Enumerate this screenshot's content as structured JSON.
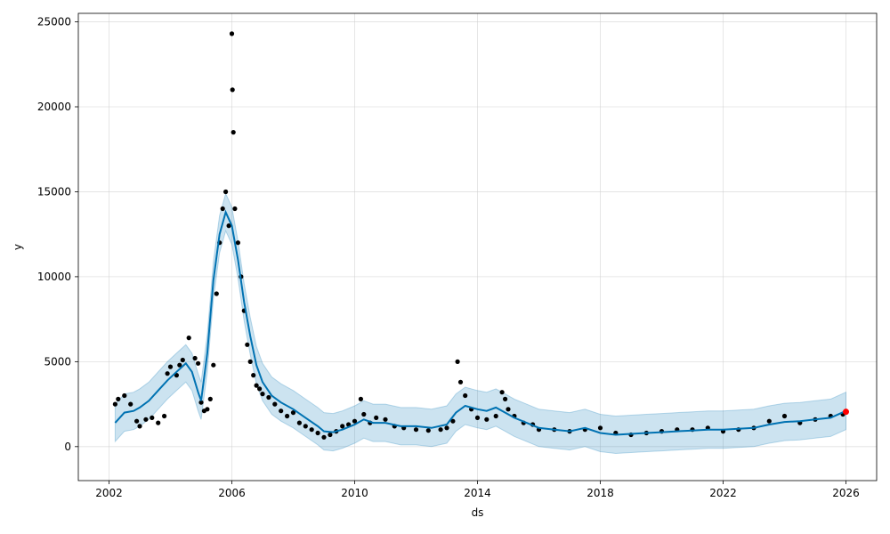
{
  "chart_data": {
    "type": "line",
    "title": "",
    "xlabel": "ds",
    "ylabel": "y",
    "xlim": [
      2001.0,
      2027.0
    ],
    "ylim": [
      -2000,
      25500
    ],
    "x_ticks": [
      {
        "value": 2002,
        "label": "2002"
      },
      {
        "value": 2006,
        "label": "2006"
      },
      {
        "value": 2010,
        "label": "2010"
      },
      {
        "value": 2014,
        "label": "2014"
      },
      {
        "value": 2018,
        "label": "2018"
      },
      {
        "value": 2022,
        "label": "2022"
      },
      {
        "value": 2026,
        "label": "2026"
      }
    ],
    "y_ticks": [
      {
        "value": 0,
        "label": "0"
      },
      {
        "value": 5000,
        "label": "5000"
      },
      {
        "value": 10000,
        "label": "10000"
      },
      {
        "value": 15000,
        "label": "15000"
      },
      {
        "value": 20000,
        "label": "20000"
      },
      {
        "value": 25000,
        "label": "25000"
      }
    ],
    "grid": true,
    "colors": {
      "observed": "#000000",
      "forecast": "#0072b2",
      "interval": "#0072b2",
      "last_point": "#ff0000"
    },
    "observed": {
      "x": [
        2002.2,
        2002.3,
        2002.5,
        2002.7,
        2002.9,
        2003.0,
        2003.2,
        2003.4,
        2003.6,
        2003.8,
        2003.9,
        2004.0,
        2004.2,
        2004.3,
        2004.4,
        2004.6,
        2004.8,
        2004.9,
        2005.0,
        2005.1,
        2005.2,
        2005.3,
        2005.4,
        2005.5,
        2005.6,
        2005.7,
        2005.8,
        2005.9,
        2006.0,
        2006.02,
        2006.05,
        2006.1,
        2006.2,
        2006.3,
        2006.4,
        2006.5,
        2006.6,
        2006.7,
        2006.8,
        2006.9,
        2007.0,
        2007.2,
        2007.4,
        2007.6,
        2007.8,
        2008.0,
        2008.2,
        2008.4,
        2008.6,
        2008.8,
        2009.0,
        2009.2,
        2009.4,
        2009.6,
        2009.8,
        2010.0,
        2010.2,
        2010.3,
        2010.5,
        2010.7,
        2011.0,
        2011.3,
        2011.6,
        2012.0,
        2012.4,
        2012.8,
        2013.0,
        2013.2,
        2013.35,
        2013.45,
        2013.6,
        2013.8,
        2014.0,
        2014.3,
        2014.6,
        2014.8,
        2014.9,
        2015.0,
        2015.2,
        2015.5,
        2015.8,
        2016.0,
        2016.5,
        2017.0,
        2017.5,
        2018.0,
        2018.5,
        2019.0,
        2019.5,
        2020.0,
        2020.5,
        2021.0,
        2021.5,
        2022.0,
        2022.5,
        2023.0,
        2023.5,
        2024.0,
        2024.5,
        2025.0,
        2025.5,
        2025.9
      ],
      "y": [
        2500,
        2800,
        3000,
        2500,
        1500,
        1200,
        1600,
        1700,
        1400,
        1800,
        4300,
        4700,
        4200,
        4800,
        5100,
        6400,
        5200,
        4900,
        2600,
        2100,
        2200,
        2800,
        4800,
        9000,
        12000,
        14000,
        15000,
        13000,
        24300,
        21000,
        18500,
        14000,
        12000,
        10000,
        8000,
        6000,
        5000,
        4200,
        3600,
        3400,
        3100,
        2900,
        2500,
        2100,
        1800,
        2000,
        1400,
        1200,
        1000,
        800,
        550,
        700,
        900,
        1200,
        1300,
        1500,
        2800,
        1900,
        1400,
        1700,
        1600,
        1200,
        1100,
        1000,
        950,
        1000,
        1100,
        1500,
        5000,
        3800,
        3000,
        2200,
        1700,
        1600,
        1800,
        3200,
        2800,
        2200,
        1800,
        1400,
        1300,
        1000,
        1000,
        900,
        1000,
        1100,
        800,
        700,
        800,
        900,
        1000,
        1000,
        1100,
        900,
        1000,
        1100,
        1500,
        1800,
        1400,
        1600,
        1800,
        1900
      ]
    },
    "forecast": {
      "x": [
        2002.2,
        2002.5,
        2002.8,
        2003.0,
        2003.3,
        2003.6,
        2003.9,
        2004.2,
        2004.5,
        2004.7,
        2004.9,
        2005.0,
        2005.2,
        2005.4,
        2005.6,
        2005.8,
        2006.0,
        2006.2,
        2006.4,
        2006.6,
        2006.8,
        2007.0,
        2007.3,
        2007.6,
        2008.0,
        2008.4,
        2008.8,
        2009.0,
        2009.3,
        2009.6,
        2010.0,
        2010.3,
        2010.6,
        2011.0,
        2011.5,
        2012.0,
        2012.5,
        2013.0,
        2013.3,
        2013.6,
        2014.0,
        2014.3,
        2014.6,
        2014.9,
        2015.2,
        2015.6,
        2016.0,
        2016.5,
        2017.0,
        2017.5,
        2018.0,
        2018.5,
        2019.0,
        2019.5,
        2020.0,
        2020.5,
        2021.0,
        2021.5,
        2022.0,
        2022.5,
        2023.0,
        2023.5,
        2024.0,
        2024.5,
        2025.0,
        2025.5,
        2026.0
      ],
      "y": [
        1400,
        2000,
        2100,
        2300,
        2700,
        3300,
        3900,
        4400,
        4900,
        4400,
        3200,
        2700,
        5500,
        9800,
        12500,
        13800,
        13000,
        11000,
        8500,
        6500,
        4800,
        3800,
        3000,
        2600,
        2200,
        1700,
        1200,
        900,
        850,
        1000,
        1300,
        1600,
        1400,
        1400,
        1200,
        1200,
        1100,
        1300,
        2000,
        2400,
        2200,
        2100,
        2300,
        2000,
        1700,
        1400,
        1100,
        1000,
        900,
        1100,
        800,
        700,
        750,
        800,
        850,
        900,
        950,
        1000,
        1000,
        1050,
        1100,
        1300,
        1450,
        1500,
        1600,
        1700,
        2100
      ]
    },
    "interval_halfwidth": 1100,
    "last_point": {
      "x": 2026.0,
      "y": 2050
    }
  }
}
